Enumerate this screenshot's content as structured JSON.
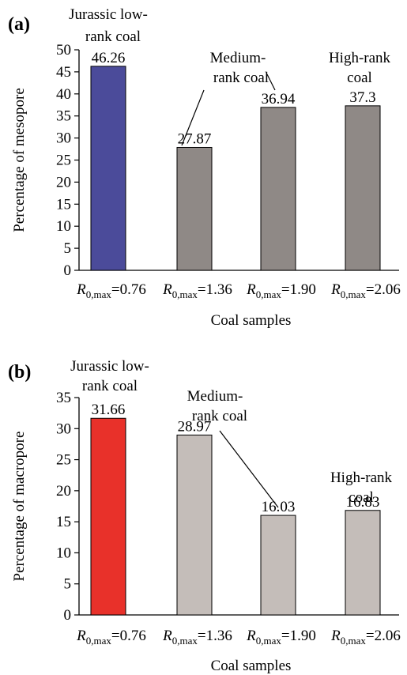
{
  "chart_data": [
    {
      "type": "bar",
      "panel_label": "(a)",
      "categories": [
        "R0,max=0.76",
        "R0,max=1.36",
        "R0,max=1.90",
        "R0,max=2.06"
      ],
      "category_parts": [
        {
          "sym": "R",
          "sub": "0,max",
          "val": "=0.76"
        },
        {
          "sym": "R",
          "sub": "0,max",
          "val": "=1.36"
        },
        {
          "sym": "R",
          "sub": "0,max",
          "val": "=1.90"
        },
        {
          "sym": "R",
          "sub": "0,max",
          "val": "=2.06"
        }
      ],
      "values": [
        46.26,
        27.87,
        36.94,
        37.3
      ],
      "value_labels": [
        "46.26",
        "27.87",
        "36.94",
        "37.3"
      ],
      "bar_colors": [
        "#4b4b9a",
        "#8f8986",
        "#8f8986",
        "#8f8986"
      ],
      "first_category_label_color": "#4b4b9a",
      "xlabel": "Coal samples",
      "ylabel": "Percentage of mesopore",
      "ylim": [
        0,
        50
      ],
      "yticks": [
        0,
        5,
        10,
        15,
        20,
        25,
        30,
        35,
        40,
        45,
        50
      ],
      "grid": false,
      "annotations": [
        {
          "lines": [
            "Jurassic low-",
            "rank coal"
          ]
        },
        {
          "lines": [
            "Medium-",
            "rank coal"
          ]
        },
        {
          "lines": [
            "High-rank",
            "coal"
          ]
        }
      ]
    },
    {
      "type": "bar",
      "panel_label": "(b)",
      "categories": [
        "R0,max=0.76",
        "R0,max=1.36",
        "R0,max=1.90",
        "R0,max=2.06"
      ],
      "category_parts": [
        {
          "sym": "R",
          "sub": "0,max",
          "val": "=0.76"
        },
        {
          "sym": "R",
          "sub": "0,max",
          "val": "=1.36"
        },
        {
          "sym": "R",
          "sub": "0,max",
          "val": "=1.90"
        },
        {
          "sym": "R",
          "sub": "0,max",
          "val": "=2.06"
        }
      ],
      "values": [
        31.66,
        28.97,
        16.03,
        16.83
      ],
      "value_labels": [
        "31.66",
        "28.97",
        "16.03",
        "16.83"
      ],
      "bar_colors": [
        "#e8312a",
        "#c4bdb9",
        "#c4bdb9",
        "#c4bdb9"
      ],
      "first_category_label_color": "#e8312a",
      "xlabel": "Coal samples",
      "ylabel": "Percentage of macropore",
      "ylim": [
        0,
        35
      ],
      "yticks": [
        0,
        5,
        10,
        15,
        20,
        25,
        30,
        35
      ],
      "grid": false,
      "annotations": [
        {
          "lines": [
            "Jurassic low-",
            "rank coal"
          ]
        },
        {
          "lines": [
            "Medium-",
            "rank coal"
          ]
        },
        {
          "lines": [
            "High-rank",
            "coal"
          ]
        }
      ]
    }
  ]
}
